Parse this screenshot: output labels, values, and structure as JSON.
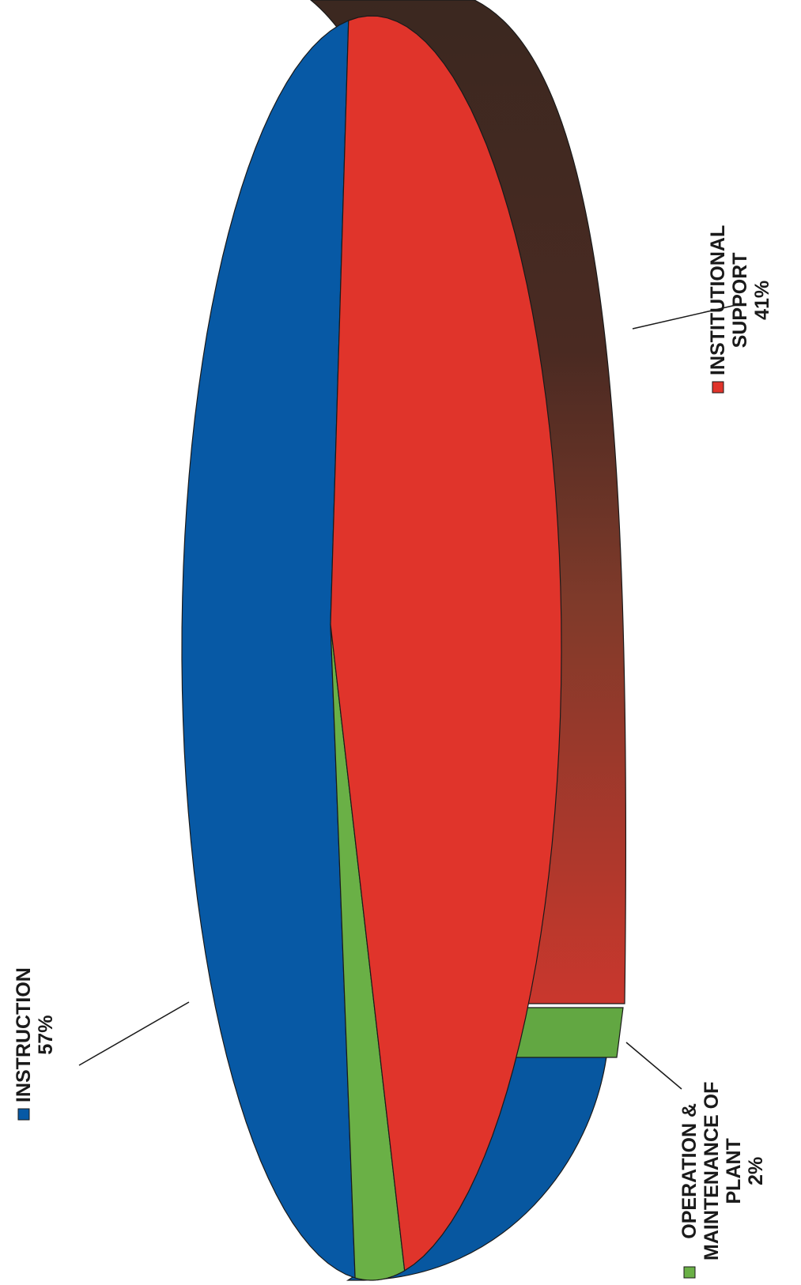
{
  "chart_data": {
    "type": "pie",
    "style": "3d-rotated",
    "title": "",
    "slices": [
      {
        "label_lines": [
          "INSTRUCTION",
          "57%"
        ],
        "value": 57,
        "color": "#0759a5",
        "side_color": "#0757a0"
      },
      {
        "label_lines": [
          "OPERATION &",
          "MAINTENANCE OF",
          "PLANT",
          "2%"
        ],
        "value": 2,
        "color": "#6ab046",
        "side_color": "#62a742"
      },
      {
        "label_lines": [
          "INSTITUTIONAL",
          "SUPPORT",
          "41%"
        ],
        "value": 41,
        "color": "#e0342b",
        "side_color": "#3e2820"
      }
    ],
    "legend_markers": true
  }
}
